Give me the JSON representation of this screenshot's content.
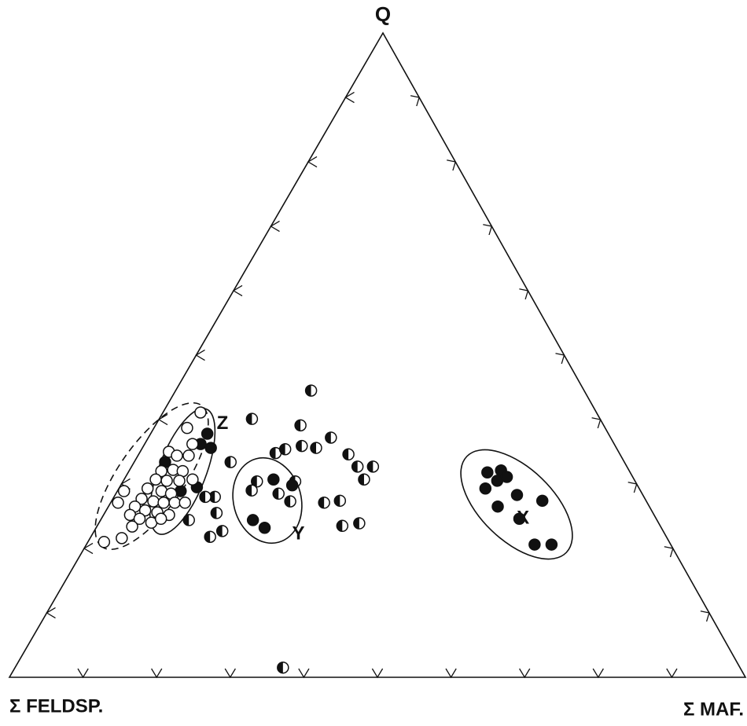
{
  "chart_data": {
    "type": "ternary",
    "vertex_labels": {
      "top": "Q",
      "left": "Σ FELDSP.",
      "right": "Σ MAF."
    },
    "lim": [
      0,
      100
    ],
    "ticks": [
      10,
      20,
      30,
      40,
      50,
      60,
      70,
      80,
      90
    ],
    "series": [
      {
        "marker": "half",
        "color": "#111111",
        "q": [
          44.5,
          40.1,
          39.1,
          33.4,
          34.8,
          35.4,
          35.9,
          35.6,
          37.2,
          34.6,
          32.7,
          32.7,
          30.7,
          30.4,
          29.0,
          30.4,
          28.5,
          27.3,
          27.1,
          27.4,
          23.5,
          23.9,
          28.0,
          25.5,
          22.7,
          21.8,
          24.4,
          28.0,
          1.5
        ],
        "m": [
          18.4,
          12.6,
          19.7,
          13.1,
          18.5,
          19.5,
          21.5,
          23.6,
          24.8,
          28.5,
          30.7,
          32.8,
          32.6,
          18.2,
          18.2,
          23.4,
          22.1,
          24.3,
          29.0,
          31.0,
          33.3,
          35.4,
          13.7,
          15.2,
          17.4,
          16.2,
          12.0,
          12.4,
          36.4
        ]
      },
      {
        "marker": "filled",
        "color": "#111111",
        "q": [
          37.8,
          36.2,
          35.6,
          33.4,
          28.9,
          29.5,
          24.4,
          23.2,
          30.7,
          29.8,
          31.8,
          32.1,
          30.5,
          31.1,
          29.3,
          28.3,
          27.4,
          26.5,
          24.6,
          20.6,
          20.6
        ],
        "m": [
          7.7,
          7.6,
          9.3,
          4.2,
          8.6,
          10.5,
          20.7,
          22.9,
          20.3,
          23.3,
          48.8,
          50.5,
          50.8,
          51.8,
          49.8,
          54.6,
          58.5,
          52.9,
          56.8,
          60.9,
          63.2
        ]
      },
      {
        "marker": "open",
        "color": "#111111",
        "q": [
          41.1,
          38.7,
          36.2,
          35.0,
          34.4,
          34.4,
          32.0,
          32.2,
          32.0,
          30.7,
          30.5,
          30.5,
          30.7,
          29.3,
          28.9,
          28.5,
          27.7,
          27.3,
          27.1,
          27.1,
          26.5,
          25.9,
          25.6,
          25.2,
          25.2,
          24.6,
          24.0,
          24.6,
          28.9,
          21.0,
          21.6,
          23.4,
          27.1,
          27.1
        ],
        "m": [
          5.1,
          4.5,
          6.5,
          3.9,
          5.3,
          6.9,
          4.4,
          5.9,
          7.3,
          4.3,
          5.9,
          7.6,
          9.3,
          3.9,
          6.0,
          7.5,
          3.9,
          5.7,
          7.2,
          8.7,
          3.6,
          5.3,
          7.1,
          8.9,
          3.6,
          5.2,
          7.1,
          8.1,
          0.9,
          2.2,
          4.3,
          4.8,
          10.1,
          1.0
        ]
      }
    ],
    "annotations": [
      {
        "text": "Z",
        "q": 39.3,
        "m": 9.0
      },
      {
        "text": "Y",
        "q": 22.2,
        "m": 28.0
      },
      {
        "text": "X",
        "q": 24.6,
        "m": 57.3
      }
    ]
  }
}
